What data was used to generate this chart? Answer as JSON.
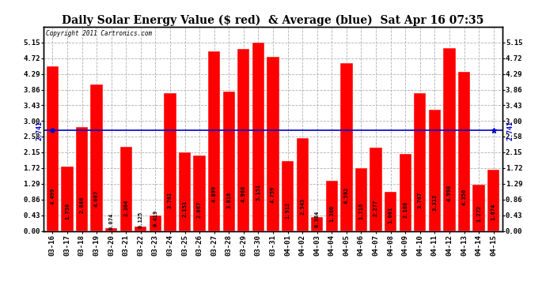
{
  "title": "Daily Solar Energy Value ($ red)  & Average (blue)  Sat Apr 16 07:35",
  "copyright": "Copyright 2011 Cartronics.com",
  "categories": [
    "03-16",
    "03-17",
    "03-18",
    "03-19",
    "03-20",
    "03-21",
    "03-22",
    "03-23",
    "03-24",
    "03-25",
    "03-26",
    "03-27",
    "03-28",
    "03-29",
    "03-30",
    "03-31",
    "04-01",
    "04-02",
    "04-03",
    "04-04",
    "04-05",
    "04-06",
    "04-07",
    "04-08",
    "04-09",
    "04-10",
    "04-11",
    "04-12",
    "04-13",
    "04-14",
    "04-15"
  ],
  "values": [
    4.499,
    1.75,
    2.846,
    4.007,
    0.074,
    2.304,
    0.125,
    0.419,
    3.761,
    2.151,
    2.067,
    4.899,
    3.816,
    4.968,
    5.151,
    4.759,
    1.912,
    2.543,
    0.384,
    1.36,
    4.592,
    1.716,
    2.277,
    1.061,
    2.108,
    3.767,
    3.312,
    4.998,
    4.356,
    1.272,
    1.674
  ],
  "average": 2.741,
  "bar_color": "#ff0000",
  "avg_line_color": "#0000cc",
  "background_color": "#ffffff",
  "plot_bg_color": "#ffffff",
  "grid_color": "#b0b0b0",
  "ylim": [
    0,
    5.58
  ],
  "yticks": [
    0.0,
    0.43,
    0.86,
    1.29,
    1.72,
    2.15,
    2.58,
    3.0,
    3.43,
    3.86,
    4.29,
    4.72,
    5.15
  ],
  "title_fontsize": 10,
  "tick_fontsize": 6.5,
  "label_fontsize": 5.0,
  "avg_label": "2.741",
  "bar_edge_color": "#ffffff",
  "bar_linewidth": 0.3
}
